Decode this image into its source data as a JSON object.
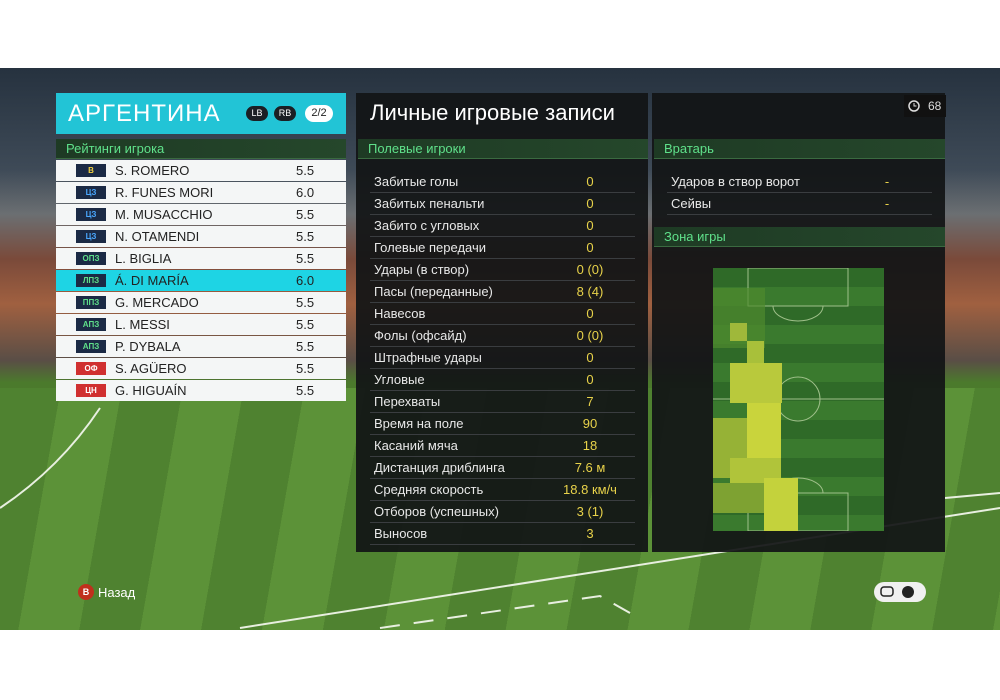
{
  "header": {
    "team": "АРГЕНТИНА",
    "buttons": [
      "LB",
      "RB"
    ],
    "page": "2/2"
  },
  "ratings": {
    "title": "Рейтинги игрока",
    "players": [
      {
        "position": "В",
        "name": "S. ROMERO",
        "rating": "5.5"
      },
      {
        "position": "ЦЗ",
        "name": "R. FUNES MORI",
        "rating": "6.0"
      },
      {
        "position": "ЦЗ",
        "name": "M. MUSACCHIO",
        "rating": "5.5"
      },
      {
        "position": "ЦЗ",
        "name": "N. OTAMENDI",
        "rating": "5.5"
      },
      {
        "position": "ОПЗ",
        "name": "L. BIGLIA",
        "rating": "5.5"
      },
      {
        "position": "ЛПЗ",
        "name": "Á. DI MARÍA",
        "rating": "6.0"
      },
      {
        "position": "ППЗ",
        "name": "G. MERCADO",
        "rating": "5.5"
      },
      {
        "position": "АПЗ",
        "name": "L. MESSI",
        "rating": "5.5"
      },
      {
        "position": "АПЗ",
        "name": "P. DYBALA",
        "rating": "5.5"
      },
      {
        "position": "ОФ",
        "name": "S. AGÜERO",
        "rating": "5.5"
      },
      {
        "position": "ЦН",
        "name": "G. HIGUAÍN",
        "rating": "5.5"
      }
    ]
  },
  "records": {
    "title": "Личные игровые записи",
    "field_players": {
      "title": "Полевые игроки",
      "rows": [
        [
          "Забитые голы",
          "0"
        ],
        [
          "Забитых пенальти",
          "0"
        ],
        [
          "Забито с угловых",
          "0"
        ],
        [
          "Голевые передачи",
          "0"
        ],
        [
          "Удары (в створ)",
          "0 (0)"
        ],
        [
          "Пасы (переданные)",
          "8 (4)"
        ],
        [
          "Навесов",
          "0"
        ],
        [
          "Фолы (офсайд)",
          "0 (0)"
        ],
        [
          "Штрафные удары",
          "0"
        ],
        [
          "Угловые",
          "0"
        ],
        [
          "Перехваты",
          "7"
        ],
        [
          "Время на поле",
          "90"
        ],
        [
          "Касаний мяча",
          "18"
        ],
        [
          "Дистанция дриблинга",
          "7.6 м"
        ],
        [
          "Средняя скорость",
          "18.8 км/ч"
        ],
        [
          "Отборов (успешных)",
          "3 (1)"
        ],
        [
          "Выносов",
          "3"
        ]
      ]
    },
    "goalkeeper": {
      "title": "Вратарь",
      "rows": [
        [
          "Ударов в створ ворот",
          "-"
        ],
        [
          "Сейвы",
          "-"
        ]
      ]
    },
    "zone": {
      "title": "Зона игры"
    }
  },
  "clock": "68",
  "footer": {
    "back_button": "B",
    "back": "Назад"
  }
}
